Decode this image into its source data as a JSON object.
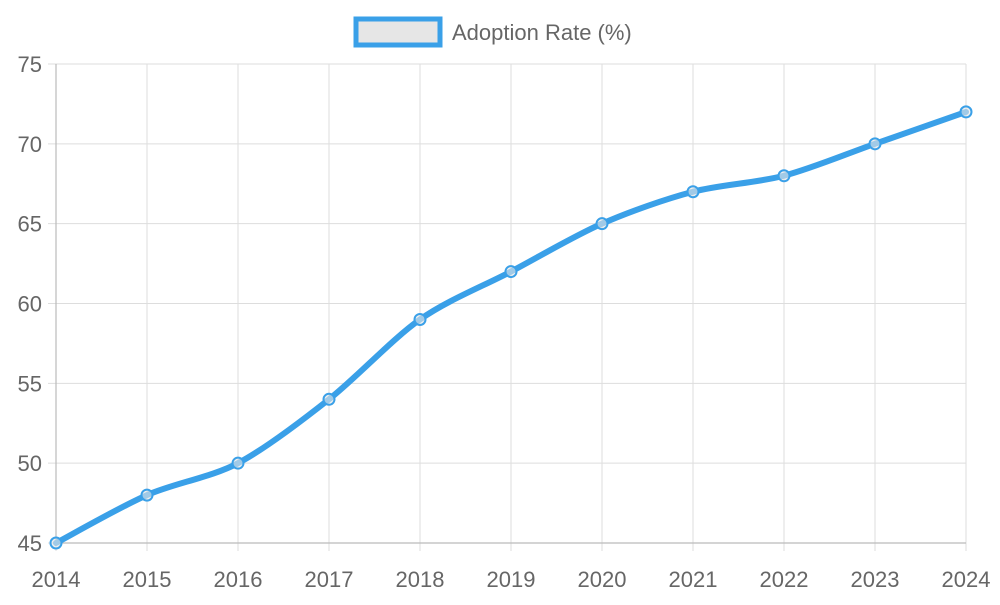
{
  "chart_data": {
    "type": "line",
    "title": "",
    "xlabel": "",
    "ylabel": "",
    "categories": [
      "2014",
      "2015",
      "2016",
      "2017",
      "2018",
      "2019",
      "2020",
      "2021",
      "2022",
      "2023",
      "2024"
    ],
    "series": [
      {
        "name": "Adoption Rate (%)",
        "values": [
          45,
          48,
          50,
          54,
          59,
          62,
          65,
          67,
          68,
          70,
          72
        ],
        "color": "#3aa0e8",
        "legend_fill": "#e6e6e6"
      }
    ],
    "ylim": [
      45,
      75
    ],
    "yticks": [
      45,
      50,
      55,
      60,
      65,
      70,
      75
    ],
    "grid": true,
    "legend_position": "top-center",
    "colors": {
      "grid": "#dddddd",
      "axis": "#bbbbbb",
      "tick_text": "#666666"
    }
  }
}
